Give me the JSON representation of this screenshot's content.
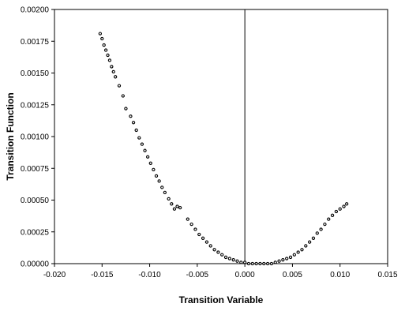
{
  "chart_data": {
    "type": "scatter",
    "xlabel": "Transition Variable",
    "ylabel": "Transition Function",
    "xlim": [
      -0.02,
      0.015
    ],
    "ylim": [
      0,
      0.002
    ],
    "x_ticks": [
      "-0.020",
      "-0.015",
      "-0.010",
      "-0.005",
      "0.000",
      "0.005",
      "0.010",
      "0.015"
    ],
    "y_ticks": [
      "0.00000",
      "0.00025",
      "0.00050",
      "0.00075",
      "0.00100",
      "0.00125",
      "0.00150",
      "0.00175",
      "0.00200"
    ],
    "vertical_reference_line": 0,
    "marker_color": "#000000",
    "series": [
      {
        "x": [
          -0.0152,
          -0.015,
          -0.0148,
          -0.0146,
          -0.0144,
          -0.0142,
          -0.014,
          -0.0138,
          -0.0136,
          -0.0132,
          -0.0128,
          -0.0125,
          -0.012,
          -0.0117,
          -0.0114,
          -0.0111,
          -0.0108,
          -0.0105,
          -0.0102,
          -0.0099,
          -0.0096,
          -0.0093,
          -0.009,
          -0.0087,
          -0.0084,
          -0.008,
          -0.0077,
          -0.0074,
          -0.0071,
          -0.0068,
          -0.006,
          -0.0056,
          -0.0052,
          -0.0048,
          -0.0044,
          -0.004,
          -0.0036,
          -0.0032,
          -0.0028,
          -0.0024,
          -0.002,
          -0.0016,
          -0.0012,
          -0.0008,
          -0.0004,
          0.0,
          0.0004,
          0.0008,
          0.0012,
          0.0016,
          0.002,
          0.0024,
          0.0028,
          0.0032,
          0.0036,
          0.004,
          0.0044,
          0.0048,
          0.0052,
          0.0056,
          0.006,
          0.0064,
          0.0068,
          0.0072,
          0.0076,
          0.008,
          0.0084,
          0.0088,
          0.0092,
          0.0096,
          0.01,
          0.0104,
          0.0107
        ],
        "y": [
          0.00181,
          0.00177,
          0.00172,
          0.00168,
          0.00164,
          0.0016,
          0.00155,
          0.00151,
          0.00147,
          0.0014,
          0.00132,
          0.00122,
          0.00116,
          0.00111,
          0.00105,
          0.00099,
          0.00094,
          0.00089,
          0.00084,
          0.00079,
          0.00074,
          0.00069,
          0.00065,
          0.0006,
          0.00056,
          0.00051,
          0.00047,
          0.00043,
          0.00045,
          0.00044,
          0.00035,
          0.00031,
          0.00027,
          0.00023,
          0.0002,
          0.00017,
          0.00014,
          0.00011,
          9e-05,
          7e-05,
          5e-05,
          4e-05,
          3e-05,
          2e-05,
          1e-05,
          1e-05,
          0.0,
          0.0,
          0.0,
          0.0,
          0.0,
          0.0,
          0.0,
          1e-05,
          2e-05,
          3e-05,
          4e-05,
          5e-05,
          7e-05,
          9e-05,
          0.00011,
          0.00014,
          0.00017,
          0.0002,
          0.00024,
          0.00027,
          0.00031,
          0.00035,
          0.00038,
          0.00041,
          0.00043,
          0.00045,
          0.00047
        ]
      }
    ]
  }
}
